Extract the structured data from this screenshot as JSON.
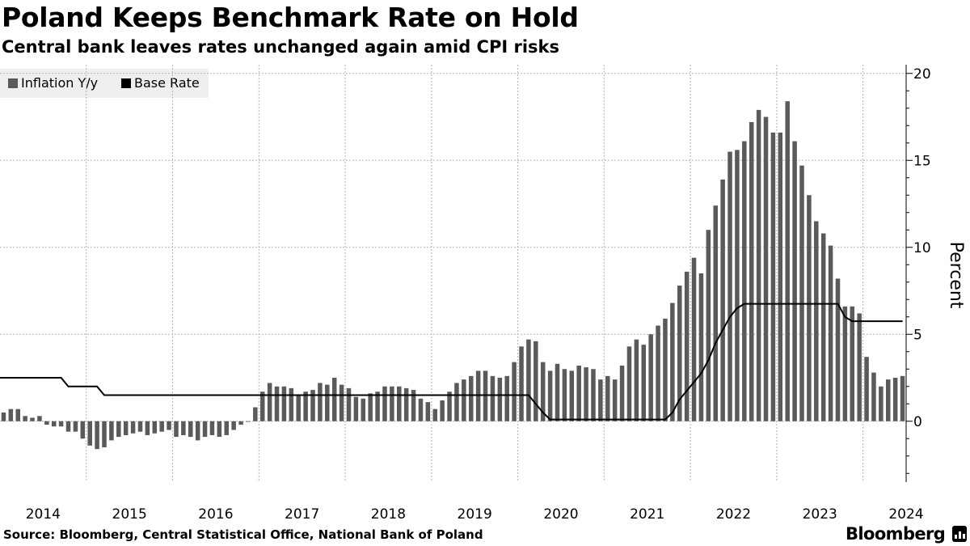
{
  "title": "Poland Keeps Benchmark Rate on Hold",
  "subtitle": "Central bank leaves rates unchanged again amid CPI risks",
  "source": "Source: Bloomberg, Central Statistical Office, National Bank of Poland",
  "brand": "Bloomberg",
  "colors": {
    "inflation_bars": "#5a5a5a",
    "base_rate_line": "#000000",
    "legend_bg": "#efefef",
    "grid": "#b4b4b4"
  },
  "chart_data": {
    "type": "bar",
    "title": "Poland Keeps Benchmark Rate on Hold",
    "ylabel": "Percent",
    "xlabel": "",
    "ylim": [
      -3.5,
      20.5
    ],
    "yticks": [
      0,
      5,
      10,
      15,
      20
    ],
    "xlim": [
      2014.0,
      2024.5
    ],
    "xticks": [
      2014,
      2015,
      2016,
      2017,
      2018,
      2019,
      2020,
      2021,
      2022,
      2023,
      2024
    ],
    "grid": true,
    "legend_position": "top-left",
    "legend": [
      "Inflation Y/y",
      "Base Rate"
    ],
    "start": "2014-01",
    "frequency": "monthly",
    "series": [
      {
        "name": "Inflation Y/y",
        "kind": "bar",
        "values": [
          0.5,
          0.7,
          0.7,
          0.3,
          0.2,
          0.3,
          -0.2,
          -0.3,
          -0.3,
          -0.6,
          -0.6,
          -1.0,
          -1.4,
          -1.6,
          -1.5,
          -1.1,
          -0.9,
          -0.8,
          -0.7,
          -0.6,
          -0.8,
          -0.7,
          -0.6,
          -0.5,
          -0.9,
          -0.8,
          -0.9,
          -1.1,
          -0.9,
          -0.8,
          -0.9,
          -0.8,
          -0.5,
          -0.2,
          0.0,
          0.8,
          1.7,
          2.2,
          2.0,
          2.0,
          1.9,
          1.5,
          1.7,
          1.8,
          2.2,
          2.1,
          2.5,
          2.1,
          1.9,
          1.4,
          1.3,
          1.6,
          1.7,
          2.0,
          2.0,
          2.0,
          1.9,
          1.8,
          1.3,
          1.1,
          0.7,
          1.2,
          1.7,
          2.2,
          2.4,
          2.6,
          2.9,
          2.9,
          2.6,
          2.5,
          2.6,
          3.4,
          4.3,
          4.7,
          4.6,
          3.4,
          2.9,
          3.3,
          3.0,
          2.9,
          3.2,
          3.1,
          3.0,
          2.4,
          2.6,
          2.4,
          3.2,
          4.3,
          4.7,
          4.4,
          5.0,
          5.5,
          5.9,
          6.8,
          7.8,
          8.6,
          9.4,
          8.5,
          11.0,
          12.4,
          13.9,
          15.5,
          15.6,
          16.1,
          17.2,
          17.9,
          17.5,
          16.6,
          16.6,
          18.4,
          16.1,
          14.7,
          13.0,
          11.5,
          10.8,
          10.1,
          8.2,
          6.6,
          6.6,
          6.2,
          3.7,
          2.8,
          2.0,
          2.4,
          2.5,
          2.6
        ]
      },
      {
        "name": "Base Rate",
        "kind": "line",
        "values": [
          2.5,
          2.5,
          2.5,
          2.5,
          2.5,
          2.5,
          2.5,
          2.5,
          2.5,
          2.0,
          2.0,
          2.0,
          2.0,
          2.0,
          1.5,
          1.5,
          1.5,
          1.5,
          1.5,
          1.5,
          1.5,
          1.5,
          1.5,
          1.5,
          1.5,
          1.5,
          1.5,
          1.5,
          1.5,
          1.5,
          1.5,
          1.5,
          1.5,
          1.5,
          1.5,
          1.5,
          1.5,
          1.5,
          1.5,
          1.5,
          1.5,
          1.5,
          1.5,
          1.5,
          1.5,
          1.5,
          1.5,
          1.5,
          1.5,
          1.5,
          1.5,
          1.5,
          1.5,
          1.5,
          1.5,
          1.5,
          1.5,
          1.5,
          1.5,
          1.5,
          1.5,
          1.5,
          1.5,
          1.5,
          1.5,
          1.5,
          1.5,
          1.5,
          1.5,
          1.5,
          1.5,
          1.5,
          1.5,
          1.5,
          1.0,
          0.5,
          0.1,
          0.1,
          0.1,
          0.1,
          0.1,
          0.1,
          0.1,
          0.1,
          0.1,
          0.1,
          0.1,
          0.1,
          0.1,
          0.1,
          0.1,
          0.1,
          0.1,
          0.5,
          1.25,
          1.75,
          2.25,
          2.75,
          3.5,
          4.5,
          5.25,
          6.0,
          6.5,
          6.75,
          6.75,
          6.75,
          6.75,
          6.75,
          6.75,
          6.75,
          6.75,
          6.75,
          6.75,
          6.75,
          6.75,
          6.75,
          6.75,
          6.0,
          5.75,
          5.75,
          5.75,
          5.75,
          5.75,
          5.75,
          5.75,
          5.75
        ]
      }
    ]
  }
}
